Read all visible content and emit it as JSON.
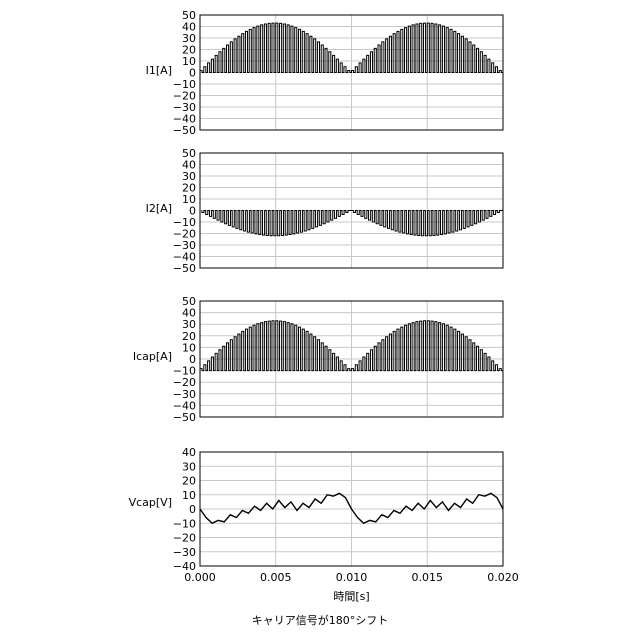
{
  "figure": {
    "caption": "キャリア信号が180°シフト",
    "xlabel": "時間[s]",
    "xticks": [
      "0.000",
      "0.005",
      "0.010",
      "0.015",
      "0.020"
    ]
  },
  "chart_data": [
    {
      "type": "line",
      "ylabel": "I1[A]",
      "xlim": [
        0,
        0.02
      ],
      "ylim": [
        -50,
        50
      ],
      "yticks": [
        "50",
        "40",
        "30",
        "20",
        "10",
        "0",
        "−10",
        "−20",
        "−30",
        "−40",
        "−50"
      ],
      "grid": true,
      "series": [
        {
          "values": "PWM pulse train switching between 0 and +43|sin(2π·50·t)|, 40 pulses per 0.01 s half-period"
        }
      ],
      "envelope_peak": 43
    },
    {
      "type": "line",
      "ylabel": "I2[A]",
      "xlim": [
        0,
        0.02
      ],
      "ylim": [
        -50,
        50
      ],
      "yticks": [
        "50",
        "40",
        "30",
        "20",
        "10",
        "0",
        "−10",
        "−20",
        "−30",
        "−40",
        "−50"
      ],
      "grid": true,
      "series": [
        {
          "values": "PWM pulse train switching between 0 and −22|sin(2π·50·t)|, carrier shifted 180°"
        }
      ],
      "envelope_peak": -22
    },
    {
      "type": "line",
      "ylabel": "Icap[A]",
      "xlim": [
        0,
        0.02
      ],
      "ylim": [
        -50,
        50
      ],
      "yticks": [
        "50",
        "40",
        "30",
        "20",
        "10",
        "0",
        "−10",
        "−20",
        "−30",
        "−40",
        "−50"
      ],
      "grid": true,
      "series": [
        {
          "values": "Pulse train switching between a lower level near −10 and an upper envelope peaking at 33 A"
        }
      ],
      "envelope_peak": 33,
      "lower_level": -10
    },
    {
      "type": "line",
      "ylabel": "Vcap[V]",
      "xlim": [
        0,
        0.02
      ],
      "ylim": [
        -40,
        40
      ],
      "yticks": [
        "40",
        "30",
        "20",
        "10",
        "0",
        "−10",
        "−20",
        "−30",
        "−40"
      ],
      "grid": true,
      "series": [
        {
          "x": [
            0.0,
            0.0004,
            0.0008,
            0.0012,
            0.0016,
            0.002,
            0.0024,
            0.0028,
            0.0032,
            0.0036,
            0.004,
            0.0044,
            0.0048,
            0.0052,
            0.0056,
            0.006,
            0.0064,
            0.0068,
            0.0072,
            0.0076,
            0.008,
            0.0084,
            0.0088,
            0.0092,
            0.0096,
            0.01
          ],
          "values": [
            0,
            -6,
            -10,
            -8,
            -9,
            -4,
            -6,
            -1,
            -3,
            2,
            -1,
            4,
            0,
            6,
            1,
            5,
            -1,
            4,
            1,
            7,
            4,
            10,
            9,
            11,
            8,
            0
          ]
        }
      ]
    }
  ]
}
